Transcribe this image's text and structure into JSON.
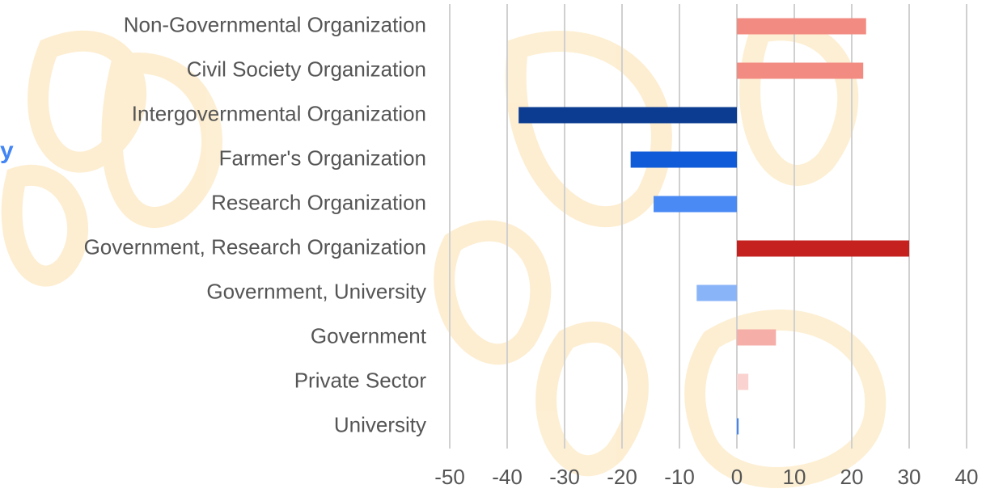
{
  "chart_data": {
    "type": "barh",
    "annotation": "y",
    "categories": [
      "Non-Governmental Organization",
      "Civil Society Organization",
      "Intergovernmental Organization",
      "Farmer's Organization",
      "Research Organization",
      "Government, Research Organization",
      "Government, University",
      "Government",
      "Private Sector",
      "University"
    ],
    "values": [
      22.5,
      22,
      -38,
      -18.5,
      -14.5,
      30,
      -7,
      6.8,
      2,
      0.3
    ],
    "colors": [
      "#f28b82",
      "#f28b82",
      "#0b3c91",
      "#0f5bd8",
      "#4a8af4",
      "#c5221f",
      "#8ab4f8",
      "#f6aea9",
      "#fad2cf",
      "#4285f4"
    ],
    "xlim": [
      -50,
      40
    ],
    "xticks": [
      -50,
      -40,
      -30,
      -20,
      -10,
      0,
      10,
      20,
      30,
      40
    ],
    "grid": true
  }
}
